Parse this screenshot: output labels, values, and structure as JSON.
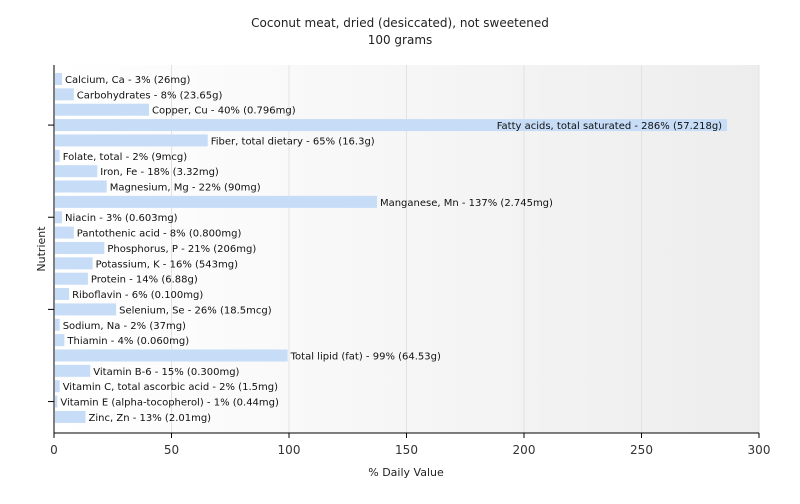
{
  "chart_data": {
    "type": "bar",
    "orientation": "horizontal",
    "title": "Coconut meat, dried (desiccated), not sweetened",
    "subtitle": "100 grams",
    "xlabel": "% Daily Value",
    "ylabel": "Nutrient",
    "xlim": [
      0,
      300
    ],
    "xticks": [
      0,
      50,
      100,
      150,
      200,
      250,
      300
    ],
    "grid": true,
    "legend": "none",
    "bar_color": "#c6dcf7",
    "categories": [
      "Calcium, Ca - 3% (26mg)",
      "Carbohydrates - 8% (23.65g)",
      "Copper, Cu - 40% (0.796mg)",
      "Fatty acids, total saturated - 286% (57.218g)",
      "Fiber, total dietary - 65% (16.3g)",
      "Folate, total - 2% (9mcg)",
      "Iron, Fe - 18% (3.32mg)",
      "Magnesium, Mg - 22% (90mg)",
      "Manganese, Mn - 137% (2.745mg)",
      "Niacin - 3% (0.603mg)",
      "Pantothenic acid - 8% (0.800mg)",
      "Phosphorus, P - 21% (206mg)",
      "Potassium, K - 16% (543mg)",
      "Protein - 14% (6.88g)",
      "Riboflavin - 6% (0.100mg)",
      "Selenium, Se - 26% (18.5mcg)",
      "Sodium, Na - 2% (37mg)",
      "Thiamin - 4% (0.060mg)",
      "Total lipid (fat) - 99% (64.53g)",
      "Vitamin B-6 - 15% (0.300mg)",
      "Vitamin C, total ascorbic acid - 2% (1.5mg)",
      "Vitamin E (alpha-tocopherol) - 1% (0.44mg)",
      "Zinc, Zn - 13% (2.01mg)"
    ],
    "values": [
      3,
      8,
      40,
      286,
      65,
      2,
      18,
      22,
      137,
      3,
      8,
      21,
      16,
      14,
      6,
      26,
      2,
      4,
      99,
      15,
      2,
      1,
      13
    ]
  }
}
